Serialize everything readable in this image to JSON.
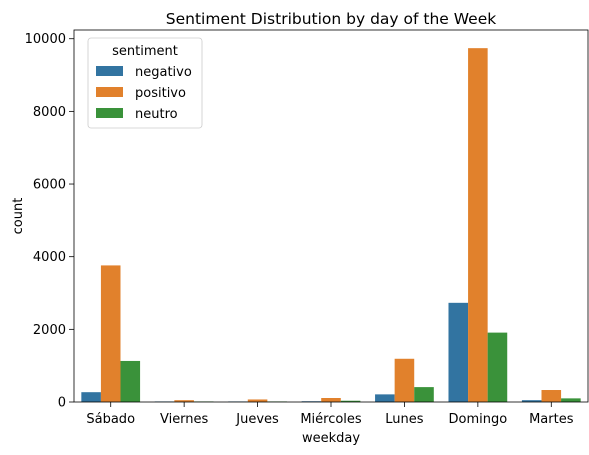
{
  "chart_data": {
    "type": "bar",
    "title": "Sentiment Distribution by day of the Week",
    "xlabel": "weekday",
    "ylabel": "count",
    "categories": [
      "Sábado",
      "Viernes",
      "Jueves",
      "Miércoles",
      "Lunes",
      "Domingo",
      "Martes"
    ],
    "series": [
      {
        "name": "negativo",
        "color": "#3274a1",
        "values": [
          270,
          15,
          15,
          20,
          210,
          2730,
          50
        ]
      },
      {
        "name": "positivo",
        "color": "#e1812c",
        "values": [
          3760,
          50,
          70,
          110,
          1190,
          9740,
          330
        ]
      },
      {
        "name": "neutro",
        "color": "#3a923a",
        "values": [
          1130,
          15,
          15,
          35,
          410,
          1910,
          100
        ]
      }
    ],
    "ylim": [
      0,
      10240
    ],
    "yticks": [
      0,
      2000,
      4000,
      6000,
      8000,
      10000
    ],
    "legend": {
      "title": "sentiment",
      "placement": "top-left"
    },
    "grid": false
  }
}
